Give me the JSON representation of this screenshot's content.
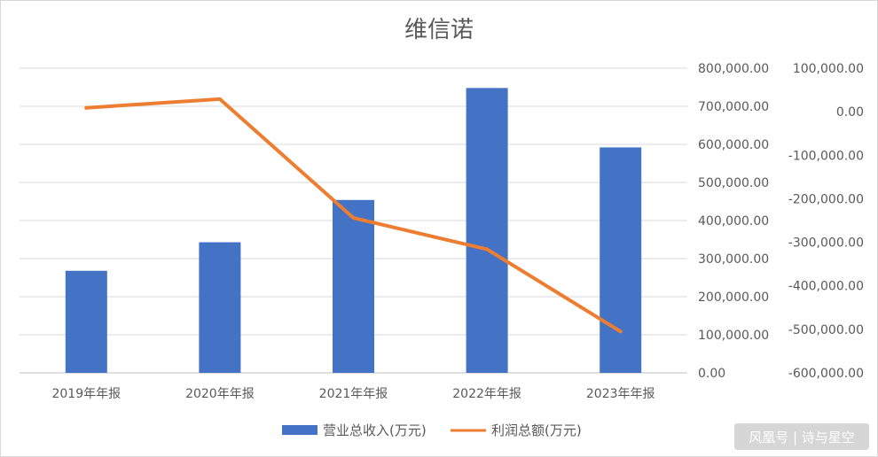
{
  "chart_data": {
    "type": "bar",
    "title": "维信诺",
    "categories": [
      "2019年年报",
      "2020年年报",
      "2021年年报",
      "2022年年报",
      "2023年年报"
    ],
    "series": [
      {
        "name": "营业总收入(万元)",
        "type": "bar",
        "axis": "left",
        "color": "#4472c4",
        "values": [
          268000,
          343000,
          454000,
          748000,
          592000
        ]
      },
      {
        "name": "利润总额(万元)",
        "type": "line",
        "axis": "right",
        "color": "#ed7d31",
        "values": [
          9000,
          29000,
          -244000,
          -316000,
          -505000
        ]
      }
    ],
    "y_left": {
      "ylim": [
        0,
        800000
      ],
      "ticks": [
        "0.00",
        "100,000.00",
        "200,000.00",
        "300,000.00",
        "400,000.00",
        "500,000.00",
        "600,000.00",
        "700,000.00",
        "800,000.00"
      ]
    },
    "y_right": {
      "ylim": [
        -600000,
        100000
      ],
      "ticks": [
        "-600,000.00",
        "-500,000.00",
        "-400,000.00",
        "-300,000.00",
        "-200,000.00",
        "-100,000.00",
        "0.00",
        "100,000.00"
      ]
    },
    "grid": true,
    "legend_position": "bottom"
  },
  "watermark": {
    "text": "风凰号 | 诗与星空"
  }
}
